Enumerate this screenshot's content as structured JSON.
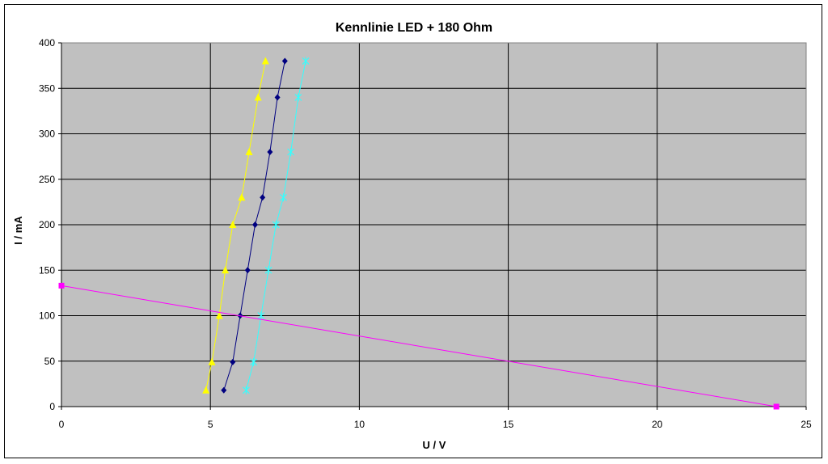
{
  "chart_data": {
    "type": "line",
    "title": "Kennlinie LED + 180 Ohm",
    "xlabel": "U / V",
    "ylabel": "I / mA",
    "xlim": [
      0,
      25
    ],
    "ylim": [
      0,
      400
    ],
    "xticks": [
      0,
      5,
      10,
      15,
      20,
      25
    ],
    "yticks": [
      0,
      50,
      100,
      150,
      200,
      250,
      300,
      350,
      400
    ],
    "grid": true,
    "plot_background": "#C0C0C0",
    "series": [
      {
        "color": "#FFFF00",
        "marker": "triangle",
        "points": [
          [
            4.85,
            18
          ],
          [
            5.05,
            49
          ],
          [
            5.3,
            100
          ],
          [
            5.5,
            150
          ],
          [
            5.75,
            200
          ],
          [
            6.05,
            230
          ],
          [
            6.3,
            280
          ],
          [
            6.6,
            340
          ],
          [
            6.85,
            380
          ]
        ]
      },
      {
        "color": "#000080",
        "marker": "diamond",
        "points": [
          [
            5.45,
            18
          ],
          [
            5.75,
            49
          ],
          [
            6.0,
            100
          ],
          [
            6.25,
            150
          ],
          [
            6.5,
            200
          ],
          [
            6.75,
            230
          ],
          [
            7.0,
            280
          ],
          [
            7.25,
            340
          ],
          [
            7.5,
            380
          ]
        ]
      },
      {
        "color": "#33FFFF",
        "marker": "star",
        "points": [
          [
            6.2,
            18
          ],
          [
            6.45,
            49
          ],
          [
            6.7,
            100
          ],
          [
            6.95,
            150
          ],
          [
            7.2,
            200
          ],
          [
            7.45,
            230
          ],
          [
            7.7,
            280
          ],
          [
            7.95,
            340
          ],
          [
            8.2,
            380
          ]
        ]
      },
      {
        "color": "#FF00FF",
        "marker": "square",
        "points": [
          [
            0,
            133
          ],
          [
            24,
            0
          ]
        ]
      }
    ]
  }
}
